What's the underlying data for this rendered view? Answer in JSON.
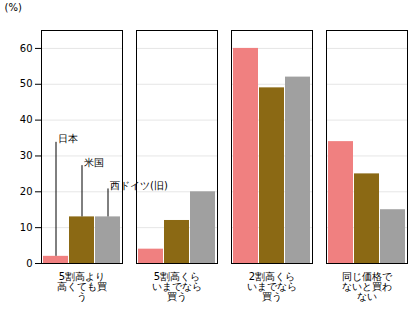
{
  "chart_data": {
    "type": "bar",
    "categories": [
      "5割高より\n高くても買\nう",
      "5割高くら\nいまでなら\n買う",
      "2割高くら\nいまでなら\n買う",
      "同じ価格で\nないと買わ\nない"
    ],
    "series": [
      {
        "name": "日本",
        "color": "#F08080",
        "values": [
          2,
          4,
          60,
          34
        ]
      },
      {
        "name": "米国",
        "color": "#8B6914",
        "values": [
          13,
          12,
          49,
          25
        ]
      },
      {
        "name": "西ドイツ(旧)",
        "color": "#A0A0A0",
        "values": [
          13,
          20,
          52,
          15
        ]
      }
    ],
    "ylabel": "(%)",
    "ylim": [
      0,
      65
    ],
    "yticks": [
      0,
      10,
      20,
      30,
      40,
      50,
      60
    ],
    "grid": true
  }
}
